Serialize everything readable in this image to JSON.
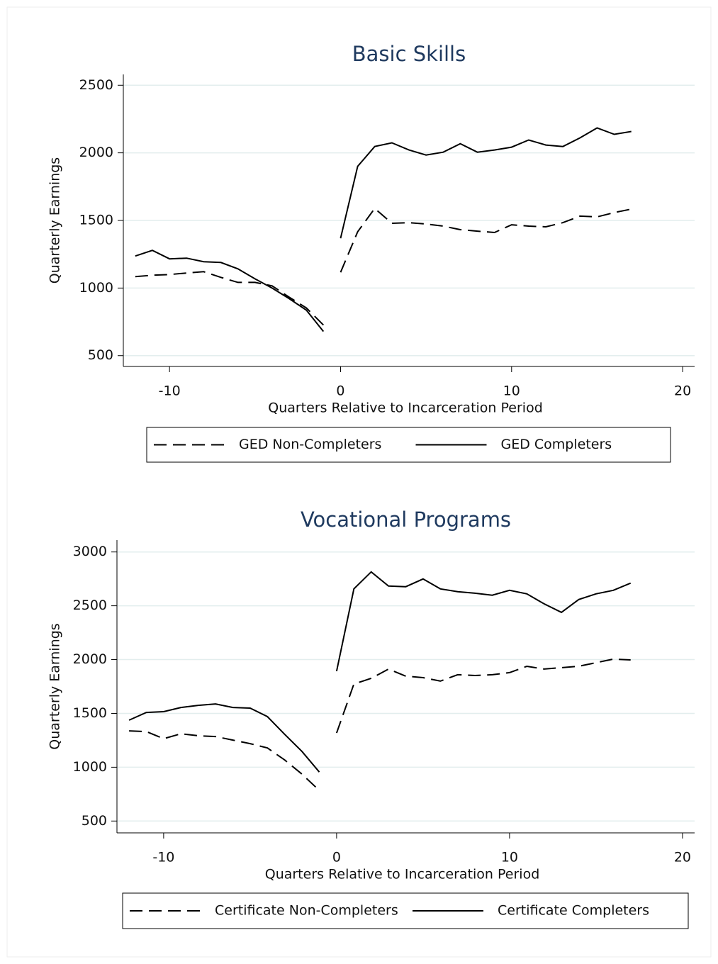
{
  "chart_data": [
    {
      "type": "line",
      "title": "Basic Skills",
      "xlabel": "Quarters Relative to Incarceration Period",
      "ylabel": "Quarterly Earnings",
      "x": [
        -12,
        -11,
        -10,
        -9,
        -8,
        -7,
        -6,
        -5,
        -4,
        -3,
        -2,
        -1,
        null,
        0,
        1,
        2,
        3,
        4,
        5,
        6,
        7,
        8,
        9,
        10,
        11,
        12,
        13,
        14,
        15,
        16,
        17
      ],
      "series": [
        {
          "name": "GED Non-Completers",
          "color": "#000000",
          "line_style": "dashed",
          "values": [
            1084,
            1095,
            1100,
            1111,
            1121,
            1079,
            1042,
            1042,
            1016,
            932,
            853,
            726,
            null,
            1116,
            1416,
            1589,
            1479,
            1484,
            1474,
            1458,
            1432,
            1421,
            1411,
            1468,
            1458,
            1453,
            1484,
            1532,
            1526,
            1558,
            1584
          ]
        },
        {
          "name": "GED Completers",
          "color": "#000000",
          "line_style": "solid",
          "values": [
            1237,
            1279,
            1216,
            1221,
            1195,
            1189,
            1142,
            1068,
            1000,
            921,
            837,
            679,
            null,
            1368,
            1900,
            2047,
            2074,
            2021,
            1984,
            2005,
            2068,
            2005,
            2021,
            2042,
            2095,
            2058,
            2047,
            2111,
            2184,
            2137,
            2158
          ]
        }
      ],
      "xlim": [
        -12.7,
        20.7
      ],
      "xticks": [
        -10,
        0,
        10,
        20
      ],
      "ylim": [
        420,
        2580
      ],
      "yticks": [
        500,
        1000,
        1500,
        2000,
        2500
      ],
      "grid": true,
      "legend": "bottom"
    },
    {
      "type": "line",
      "title": "Vocational Programs",
      "xlabel": "Quarters Relative to Incarceration Period",
      "ylabel": "Quarterly Earnings",
      "x": [
        -12,
        -11,
        -10,
        -9,
        -8,
        -7,
        -6,
        -5,
        -4,
        -3,
        -2,
        -1,
        null,
        0,
        1,
        2,
        3,
        4,
        5,
        6,
        7,
        8,
        9,
        10,
        11,
        12,
        13,
        14,
        15,
        16,
        17
      ],
      "series": [
        {
          "name": "Certificate Non-Completers",
          "color": "#000000",
          "line_style": "dashed",
          "values": [
            1338,
            1331,
            1265,
            1311,
            1292,
            1285,
            1252,
            1219,
            1179,
            1067,
            935,
            784,
            null,
            1318,
            1773,
            1826,
            1912,
            1846,
            1832,
            1800,
            1859,
            1852,
            1859,
            1879,
            1938,
            1912,
            1925,
            1938,
            1971,
            2004,
            1997
          ]
        },
        {
          "name": "Certificate Completers",
          "color": "#000000",
          "line_style": "solid",
          "values": [
            1437,
            1509,
            1516,
            1555,
            1575,
            1588,
            1555,
            1549,
            1470,
            1305,
            1146,
            955,
            null,
            1892,
            2657,
            2815,
            2683,
            2677,
            2749,
            2657,
            2631,
            2617,
            2598,
            2644,
            2611,
            2518,
            2439,
            2558,
            2611,
            2644,
            2710
          ]
        }
      ],
      "xlim": [
        -12.7,
        20.7
      ],
      "xticks": [
        -10,
        0,
        10,
        20
      ],
      "ylim": [
        390,
        3110
      ],
      "yticks": [
        500,
        1000,
        1500,
        2000,
        2500,
        3000
      ],
      "grid": true,
      "legend": "bottom"
    }
  ]
}
